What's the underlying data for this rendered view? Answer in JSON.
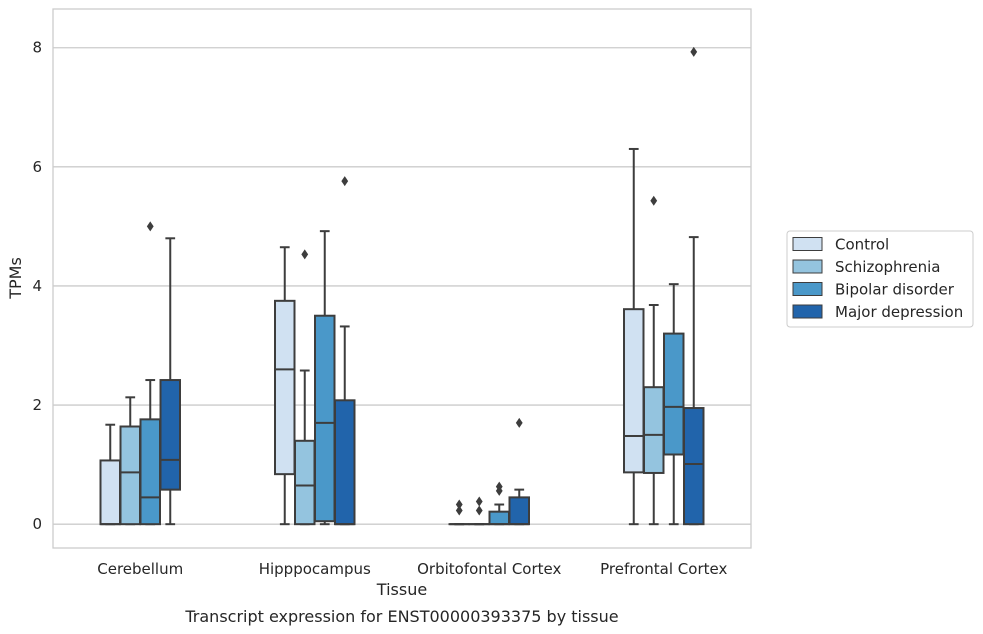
{
  "chart_data": {
    "type": "boxplot",
    "caption": "Transcript expression for ENST00000393375 by tissue",
    "xlabel": "Tissue",
    "ylabel": "TPMs",
    "ylim": [
      -0.4,
      8.65
    ],
    "yticks": [
      0,
      2,
      4,
      6,
      8
    ],
    "grid": "horizontal",
    "legend_position": "right",
    "categories": [
      "Cerebellum",
      "Hipppocampus",
      "Orbitofontal Cortex",
      "Prefrontal Cortex"
    ],
    "series": [
      {
        "name": "Control",
        "color": "#d0e1f2",
        "boxes": [
          {
            "whisker_low": 0,
            "q1": 0,
            "median": 0,
            "q3": 1.07,
            "whisker_high": 1.67,
            "outliers": []
          },
          {
            "whisker_low": 0,
            "q1": 0.84,
            "median": 2.6,
            "q3": 3.75,
            "whisker_high": 4.65,
            "outliers": []
          },
          {
            "whisker_low": 0,
            "q1": 0,
            "median": 0,
            "q3": 0,
            "whisker_high": 0,
            "outliers": [
              0.23,
              0.33
            ]
          },
          {
            "whisker_low": 0,
            "q1": 0.87,
            "median": 1.48,
            "q3": 3.61,
            "whisker_high": 6.3,
            "outliers": []
          }
        ]
      },
      {
        "name": "Schizophrenia",
        "color": "#94c4df",
        "boxes": [
          {
            "whisker_low": 0,
            "q1": 0,
            "median": 0.87,
            "q3": 1.64,
            "whisker_high": 2.13,
            "outliers": []
          },
          {
            "whisker_low": 0,
            "q1": 0,
            "median": 0.65,
            "q3": 1.4,
            "whisker_high": 2.58,
            "outliers": [
              4.53
            ]
          },
          {
            "whisker_low": 0,
            "q1": 0,
            "median": 0,
            "q3": 0,
            "whisker_high": 0,
            "outliers": [
              0.23,
              0.38
            ]
          },
          {
            "whisker_low": 0,
            "q1": 0.86,
            "median": 1.5,
            "q3": 2.3,
            "whisker_high": 3.68,
            "outliers": [
              5.43
            ]
          }
        ]
      },
      {
        "name": "Bipolar disorder",
        "color": "#4a98c9",
        "boxes": [
          {
            "whisker_low": 0,
            "q1": 0,
            "median": 0.45,
            "q3": 1.76,
            "whisker_high": 2.42,
            "outliers": [
              5.0
            ]
          },
          {
            "whisker_low": 0,
            "q1": 0.05,
            "median": 1.7,
            "q3": 3.5,
            "whisker_high": 4.92,
            "outliers": []
          },
          {
            "whisker_low": 0,
            "q1": 0,
            "median": 0,
            "q3": 0.21,
            "whisker_high": 0.33,
            "outliers": [
              0.56,
              0.63
            ]
          },
          {
            "whisker_low": 0,
            "q1": 1.17,
            "median": 1.97,
            "q3": 3.2,
            "whisker_high": 4.03,
            "outliers": []
          }
        ]
      },
      {
        "name": "Major depression",
        "color": "#2164ab",
        "boxes": [
          {
            "whisker_low": 0,
            "q1": 0.58,
            "median": 1.08,
            "q3": 2.42,
            "whisker_high": 4.8,
            "outliers": []
          },
          {
            "whisker_low": 0,
            "q1": 0,
            "median": 0,
            "q3": 2.08,
            "whisker_high": 3.32,
            "outliers": [
              5.76
            ]
          },
          {
            "whisker_low": 0,
            "q1": 0,
            "median": 0,
            "q3": 0.45,
            "whisker_high": 0.58,
            "outliers": [
              1.7
            ]
          },
          {
            "whisker_low": 0,
            "q1": 0,
            "median": 1.01,
            "q3": 1.95,
            "whisker_high": 4.82,
            "outliers": [
              7.93
            ]
          }
        ]
      }
    ]
  }
}
